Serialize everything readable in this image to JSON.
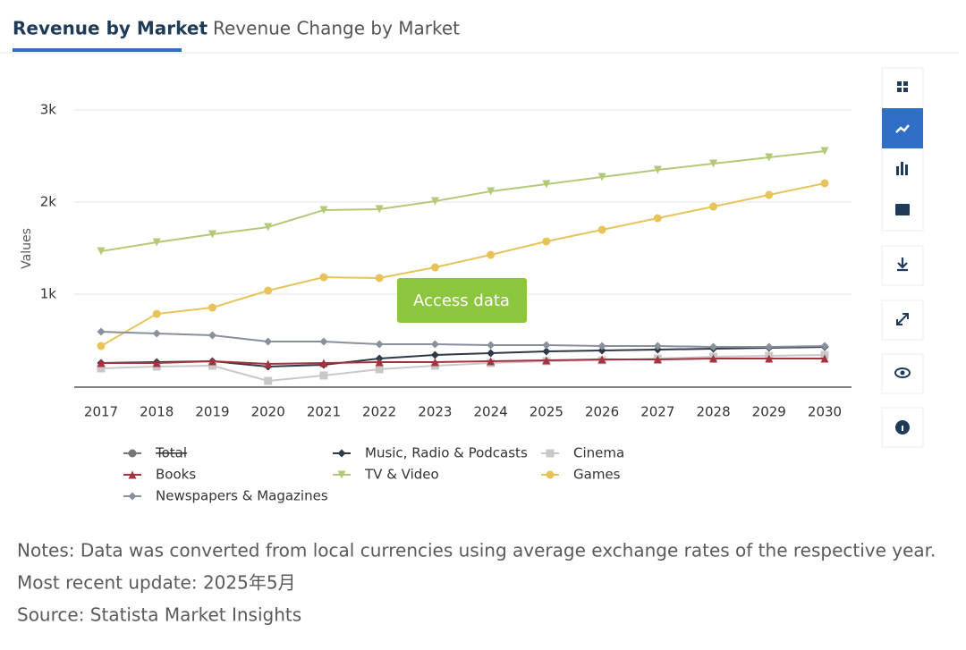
{
  "tabs": [
    "Revenue by Market",
    "Revenue Change by Market"
  ],
  "chart_data": {
    "type": "line",
    "y_label": "Values",
    "categories": [
      "2017",
      "2018",
      "2019",
      "2020",
      "2021",
      "2022",
      "2023",
      "2024",
      "2025",
      "2026",
      "2027",
      "2028",
      "2029",
      "2030"
    ],
    "ylim": [
      0,
      3000
    ],
    "yticks": [
      {
        "value": 1000,
        "label": "1k"
      },
      {
        "value": 2000,
        "label": "2k"
      },
      {
        "value": 3000,
        "label": "3k"
      }
    ],
    "grid": true,
    "legend_position": "bottom",
    "series": [
      {
        "name": "Total",
        "color": "#666666",
        "marker": "circle",
        "visible": false,
        "values": [
          null,
          null,
          null,
          null,
          null,
          null,
          null,
          null,
          null,
          null,
          null,
          null,
          null,
          null
        ]
      },
      {
        "name": "Music, Radio & Podcasts",
        "color": "#2e3a45",
        "marker": "diamond",
        "values": [
          252,
          262,
          272,
          214,
          233,
          301,
          340,
          359,
          379,
          388,
          398,
          408,
          417,
          427
        ]
      },
      {
        "name": "Cinema",
        "color": "#c8c8c8",
        "marker": "square",
        "values": [
          194,
          214,
          223,
          58,
          117,
          184,
          223,
          252,
          272,
          282,
          301,
          320,
          330,
          340
        ]
      },
      {
        "name": "Books",
        "color": "#a3343f",
        "marker": "triangle",
        "values": [
          252,
          252,
          272,
          243,
          252,
          262,
          262,
          272,
          282,
          291,
          291,
          301,
          301,
          301
        ]
      },
      {
        "name": "TV & Video",
        "color": "#b3c977",
        "marker": "triangle-down",
        "values": [
          1466,
          1563,
          1650,
          1728,
          1913,
          1922,
          2010,
          2117,
          2194,
          2272,
          2350,
          2417,
          2485,
          2553
        ]
      },
      {
        "name": "Games",
        "color": "#e8c35a",
        "marker": "circle",
        "values": [
          437,
          786,
          854,
          1039,
          1184,
          1175,
          1291,
          1427,
          1573,
          1699,
          1825,
          1951,
          2078,
          2204
        ]
      },
      {
        "name": "Newspapers & Magazines",
        "color": "#8a8f9e",
        "marker": "diamond",
        "values": [
          592,
          573,
          553,
          485,
          485,
          456,
          456,
          447,
          447,
          437,
          437,
          427,
          427,
          437
        ]
      }
    ]
  },
  "button": "Access data",
  "notes": [
    "Notes: Data was converted from local currencies using average exchange rates of the respective year.",
    "Most recent update: 2025年5月",
    "Source: Statista Market Insights"
  ]
}
